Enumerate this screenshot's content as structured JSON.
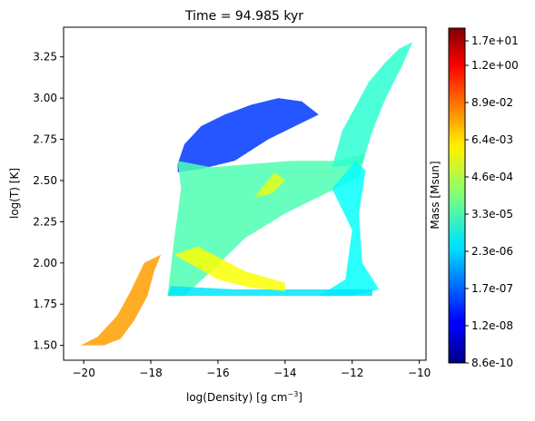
{
  "chart_data": {
    "type": "heatmap",
    "title": "Time = 94.985 kyr",
    "xlabel": "log(Density) [g cm",
    "xlabel_sup": "−3",
    "xlabel_end": "]",
    "ylabel": "log(T) [K]",
    "xlim": [
      -20.6,
      -9.8
    ],
    "ylim": [
      1.41,
      3.43
    ],
    "x_ticks": [
      -20,
      -18,
      -16,
      -14,
      -12,
      -10
    ],
    "x_tick_labels": [
      "−20",
      "−18",
      "−16",
      "−14",
      "−12",
      "−10"
    ],
    "y_ticks": [
      1.5,
      1.75,
      2.0,
      2.25,
      2.5,
      2.75,
      3.0,
      3.25
    ],
    "y_tick_labels": [
      "1.50",
      "1.75",
      "2.00",
      "2.25",
      "2.50",
      "2.75",
      "3.00",
      "3.25"
    ],
    "grid": false,
    "colorbar": {
      "label": "Mass [Msun]",
      "scale": "log",
      "colormap": "jet",
      "tick_labels": [
        "8.6e-10",
        "1.2e-08",
        "1.7e-07",
        "2.3e-06",
        "3.3e-05",
        "4.6e-04",
        "6.4e-03",
        "8.9e-02",
        "1.2e+00",
        "1.7e+01"
      ]
    },
    "regions": [
      {
        "name": "hot-low-density-plume",
        "color_level": 0.18,
        "polygon": [
          [
            -17.2,
            2.6
          ],
          [
            -17.0,
            2.72
          ],
          [
            -16.5,
            2.83
          ],
          [
            -15.8,
            2.9
          ],
          [
            -15.0,
            2.96
          ],
          [
            -14.2,
            3.0
          ],
          [
            -13.5,
            2.98
          ],
          [
            -13.0,
            2.9
          ],
          [
            -14.5,
            2.75
          ],
          [
            -15.5,
            2.62
          ],
          [
            -16.5,
            2.57
          ],
          [
            -17.2,
            2.55
          ]
        ]
      },
      {
        "name": "main-body",
        "color_level": 0.45,
        "polygon": [
          [
            -17.2,
            2.62
          ],
          [
            -16.2,
            2.58
          ],
          [
            -15.0,
            2.6
          ],
          [
            -13.8,
            2.62
          ],
          [
            -12.5,
            2.62
          ],
          [
            -11.6,
            2.66
          ],
          [
            -11.8,
            2.52
          ],
          [
            -12.8,
            2.42
          ],
          [
            -14.0,
            2.3
          ],
          [
            -15.2,
            2.15
          ],
          [
            -16.2,
            1.95
          ],
          [
            -17.0,
            1.8
          ],
          [
            -17.5,
            1.8
          ],
          [
            -17.3,
            2.15
          ],
          [
            -17.1,
            2.45
          ]
        ]
      },
      {
        "name": "right-spikes",
        "color_level": 0.42,
        "polygon": [
          [
            -12.6,
            2.58
          ],
          [
            -12.3,
            2.8
          ],
          [
            -11.9,
            2.95
          ],
          [
            -11.5,
            3.1
          ],
          [
            -11.0,
            3.22
          ],
          [
            -10.6,
            3.3
          ],
          [
            -10.2,
            3.34
          ],
          [
            -10.5,
            3.2
          ],
          [
            -11.0,
            3.0
          ],
          [
            -11.4,
            2.8
          ],
          [
            -11.7,
            2.6
          ]
        ]
      },
      {
        "name": "cold-branch-right",
        "color_level": 0.38,
        "polygon": [
          [
            -12.6,
            2.45
          ],
          [
            -11.9,
            2.62
          ],
          [
            -11.6,
            2.56
          ],
          [
            -11.8,
            2.3
          ],
          [
            -11.7,
            2.0
          ],
          [
            -11.2,
            1.84
          ],
          [
            -12.0,
            1.8
          ],
          [
            -13.0,
            1.8
          ],
          [
            -12.2,
            1.9
          ],
          [
            -12.0,
            2.2
          ]
        ]
      },
      {
        "name": "cold-floor",
        "color_level": 0.35,
        "polygon": [
          [
            -17.5,
            1.8
          ],
          [
            -15.5,
            1.8
          ],
          [
            -13.0,
            1.8
          ],
          [
            -11.4,
            1.8
          ],
          [
            -11.4,
            1.84
          ],
          [
            -13.5,
            1.84
          ],
          [
            -15.5,
            1.84
          ],
          [
            -17.4,
            1.86
          ]
        ]
      },
      {
        "name": "dense-ridge",
        "color_level": 0.62,
        "polygon": [
          [
            -17.3,
            2.05
          ],
          [
            -16.0,
            1.9
          ],
          [
            -15.0,
            1.85
          ],
          [
            -14.0,
            1.83
          ],
          [
            -14.0,
            1.88
          ],
          [
            -15.2,
            1.95
          ],
          [
            -16.6,
            2.1
          ]
        ]
      },
      {
        "name": "collapse-branch",
        "color_level": 0.72,
        "polygon": [
          [
            -20.1,
            1.5
          ],
          [
            -19.4,
            1.5
          ],
          [
            -18.9,
            1.54
          ],
          [
            -18.5,
            1.65
          ],
          [
            -18.1,
            1.8
          ],
          [
            -17.9,
            1.95
          ],
          [
            -17.7,
            2.05
          ],
          [
            -18.2,
            2.0
          ],
          [
            -18.6,
            1.83
          ],
          [
            -19.0,
            1.68
          ],
          [
            -19.6,
            1.55
          ]
        ]
      },
      {
        "name": "hot-tip",
        "color_level": 0.6,
        "polygon": [
          [
            -14.9,
            2.4
          ],
          [
            -14.6,
            2.48
          ],
          [
            -14.3,
            2.55
          ],
          [
            -14.0,
            2.5
          ],
          [
            -14.4,
            2.42
          ]
        ]
      }
    ]
  }
}
